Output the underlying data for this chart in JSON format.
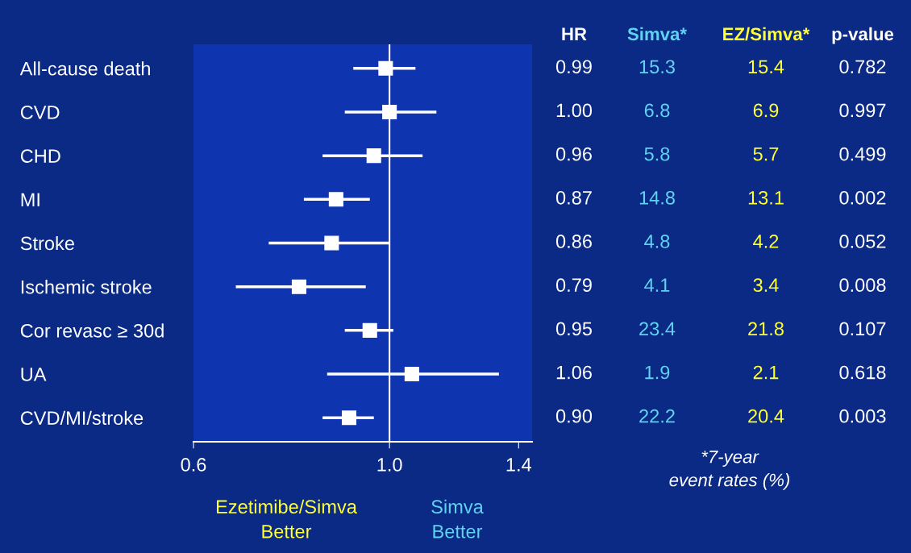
{
  "chart_data": {
    "type": "scatter",
    "orientation": "horizontal",
    "log": "x",
    "categories": [
      "All-cause death",
      "CVD",
      "CHD",
      "MI",
      "Stroke",
      "Ischemic stroke",
      "Cor revasc ≥ 30d",
      "UA",
      "CVD/MI/stroke"
    ],
    "values": [
      0.99,
      1.0,
      0.96,
      0.87,
      0.86,
      0.79,
      0.95,
      1.06,
      0.9
    ],
    "errors": [
      [
        0.91,
        1.07
      ],
      [
        0.89,
        1.13
      ],
      [
        0.84,
        1.09
      ],
      [
        0.8,
        0.95
      ],
      [
        0.73,
        1.0
      ],
      [
        0.67,
        0.94
      ],
      [
        0.89,
        1.01
      ],
      [
        0.85,
        1.33
      ],
      [
        0.84,
        0.96
      ]
    ],
    "value_labels": [
      "0.99",
      "1.00",
      "0.96",
      "0.87",
      "0.86",
      "0.79",
      "0.95",
      "1.06",
      "0.90"
    ],
    "color": "#ffffff",
    "marker": "square",
    "xlim": [
      0.6,
      1.45
    ],
    "xticks": [
      {
        "value": 0.6,
        "label": "0.6"
      },
      {
        "value": 1.0,
        "label": "1.0"
      },
      {
        "value": 1.4,
        "label": "1.4"
      }
    ],
    "ref_lines": [
      {
        "axis": "x",
        "value": 1.0,
        "color": "#ffffff"
      }
    ],
    "grid": false,
    "annotations": [
      "HR",
      "Simva*",
      "EZ/Simva*",
      "p-value",
      "15.3",
      "15.4",
      "0.782",
      "6.8",
      "6.9",
      "0.997",
      "5.8",
      "5.7",
      "0.499",
      "14.8",
      "13.1",
      "0.002",
      "4.8",
      "4.2",
      "0.052",
      "4.1",
      "3.4",
      "0.008",
      "23.4",
      "21.8",
      "0.107",
      "1.9",
      "2.1",
      "0.618",
      "22.2",
      "20.4",
      "0.003",
      "*7-year\nevent rates (%)",
      "Ezetimibe/Simva\nBetter",
      "Simva\nBetter"
    ]
  }
}
